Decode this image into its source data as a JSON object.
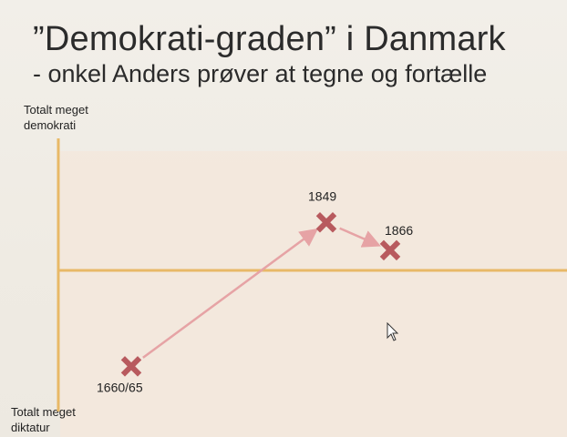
{
  "slide": {
    "title": "”Demokrati-graden” i Danmark",
    "subtitle": "- onkel Anders prøver at tegne og fortælle",
    "y_top_label": "Totalt meget demokrati",
    "y_bottom_label": "Totalt meget diktatur"
  },
  "colors": {
    "axis": "#e8b967",
    "panel": "#f3e7dc",
    "marker": "#b85a5e",
    "arrow": "#e6a3a5"
  },
  "chart_data": {
    "type": "line",
    "points": [
      {
        "label": "1660/65",
        "value": -0.62
      },
      {
        "label": "1849",
        "value": 0.31
      },
      {
        "label": "1866",
        "value": 0.13
      }
    ],
    "y_range": [
      -1,
      1
    ]
  },
  "icons": [
    "mouse-cursor-icon"
  ]
}
